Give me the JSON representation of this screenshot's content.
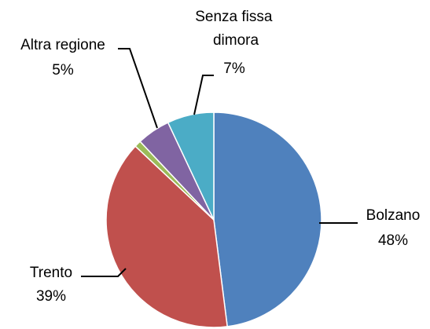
{
  "chart_data": {
    "type": "pie",
    "categories": [
      "Bolzano",
      "Trento",
      null,
      "Altra regione",
      "Senza fissa dimora"
    ],
    "values": [
      48,
      39,
      1,
      5,
      7
    ],
    "value_labels": [
      "48%",
      "39%",
      null,
      "5%",
      "7%"
    ],
    "colors": [
      "#4f81bd",
      "#c0504d",
      "#9bbb59",
      "#8064a2",
      "#4bacc6"
    ]
  }
}
